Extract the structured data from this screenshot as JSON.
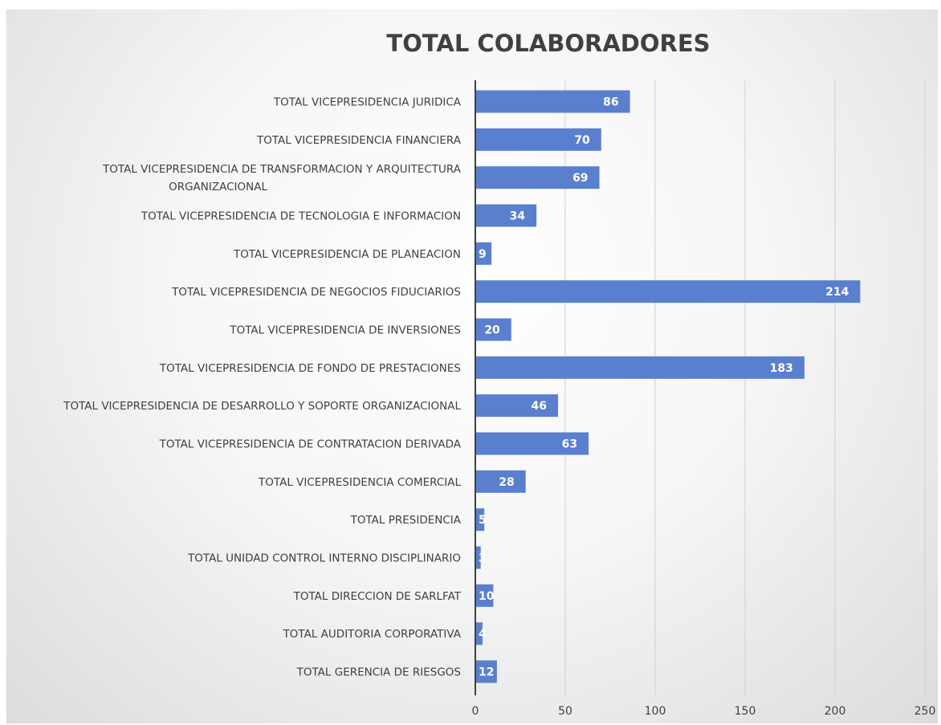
{
  "chart_data": {
    "type": "bar",
    "orientation": "horizontal",
    "title": "TOTAL COLABORADORES",
    "categories": [
      [
        "TOTAL VICEPRESIDENCIA JURIDICA"
      ],
      [
        "TOTAL VICEPRESIDENCIA FINANCIERA"
      ],
      [
        "TOTAL VICEPRESIDENCIA DE TRANSFORMACION Y ARQUITECTURA",
        "ORGANIZACIONAL"
      ],
      [
        "TOTAL VICEPRESIDENCIA DE TECNOLOGIA E INFORMACION"
      ],
      [
        "TOTAL VICEPRESIDENCIA DE PLANEACION"
      ],
      [
        "TOTAL VICEPRESIDENCIA DE NEGOCIOS FIDUCIARIOS"
      ],
      [
        "TOTAL VICEPRESIDENCIA DE INVERSIONES"
      ],
      [
        "TOTAL VICEPRESIDENCIA DE FONDO DE PRESTACIONES"
      ],
      [
        "TOTAL VICEPRESIDENCIA DE DESARROLLO Y SOPORTE ORGANIZACIONAL"
      ],
      [
        "TOTAL VICEPRESIDENCIA DE CONTRATACION DERIVADA"
      ],
      [
        "TOTAL VICEPRESIDENCIA COMERCIAL"
      ],
      [
        "TOTAL PRESIDENCIA"
      ],
      [
        "TOTAL UNIDAD CONTROL INTERNO DISCIPLINARIO"
      ],
      [
        "TOTAL DIRECCION DE SARLFAT"
      ],
      [
        "TOTAL AUDITORIA CORPORATIVA"
      ],
      [
        "TOTAL GERENCIA DE RIESGOS"
      ]
    ],
    "values": [
      86,
      70,
      69,
      34,
      9,
      214,
      20,
      183,
      46,
      63,
      28,
      5,
      3,
      10,
      4,
      12
    ],
    "xlim": [
      0,
      250
    ],
    "xticks": [
      0,
      50,
      100,
      150,
      200,
      250
    ],
    "bar_color": "#5b7fcf",
    "label_color": "#ffffff",
    "grid": "vertical",
    "legend": "none"
  }
}
